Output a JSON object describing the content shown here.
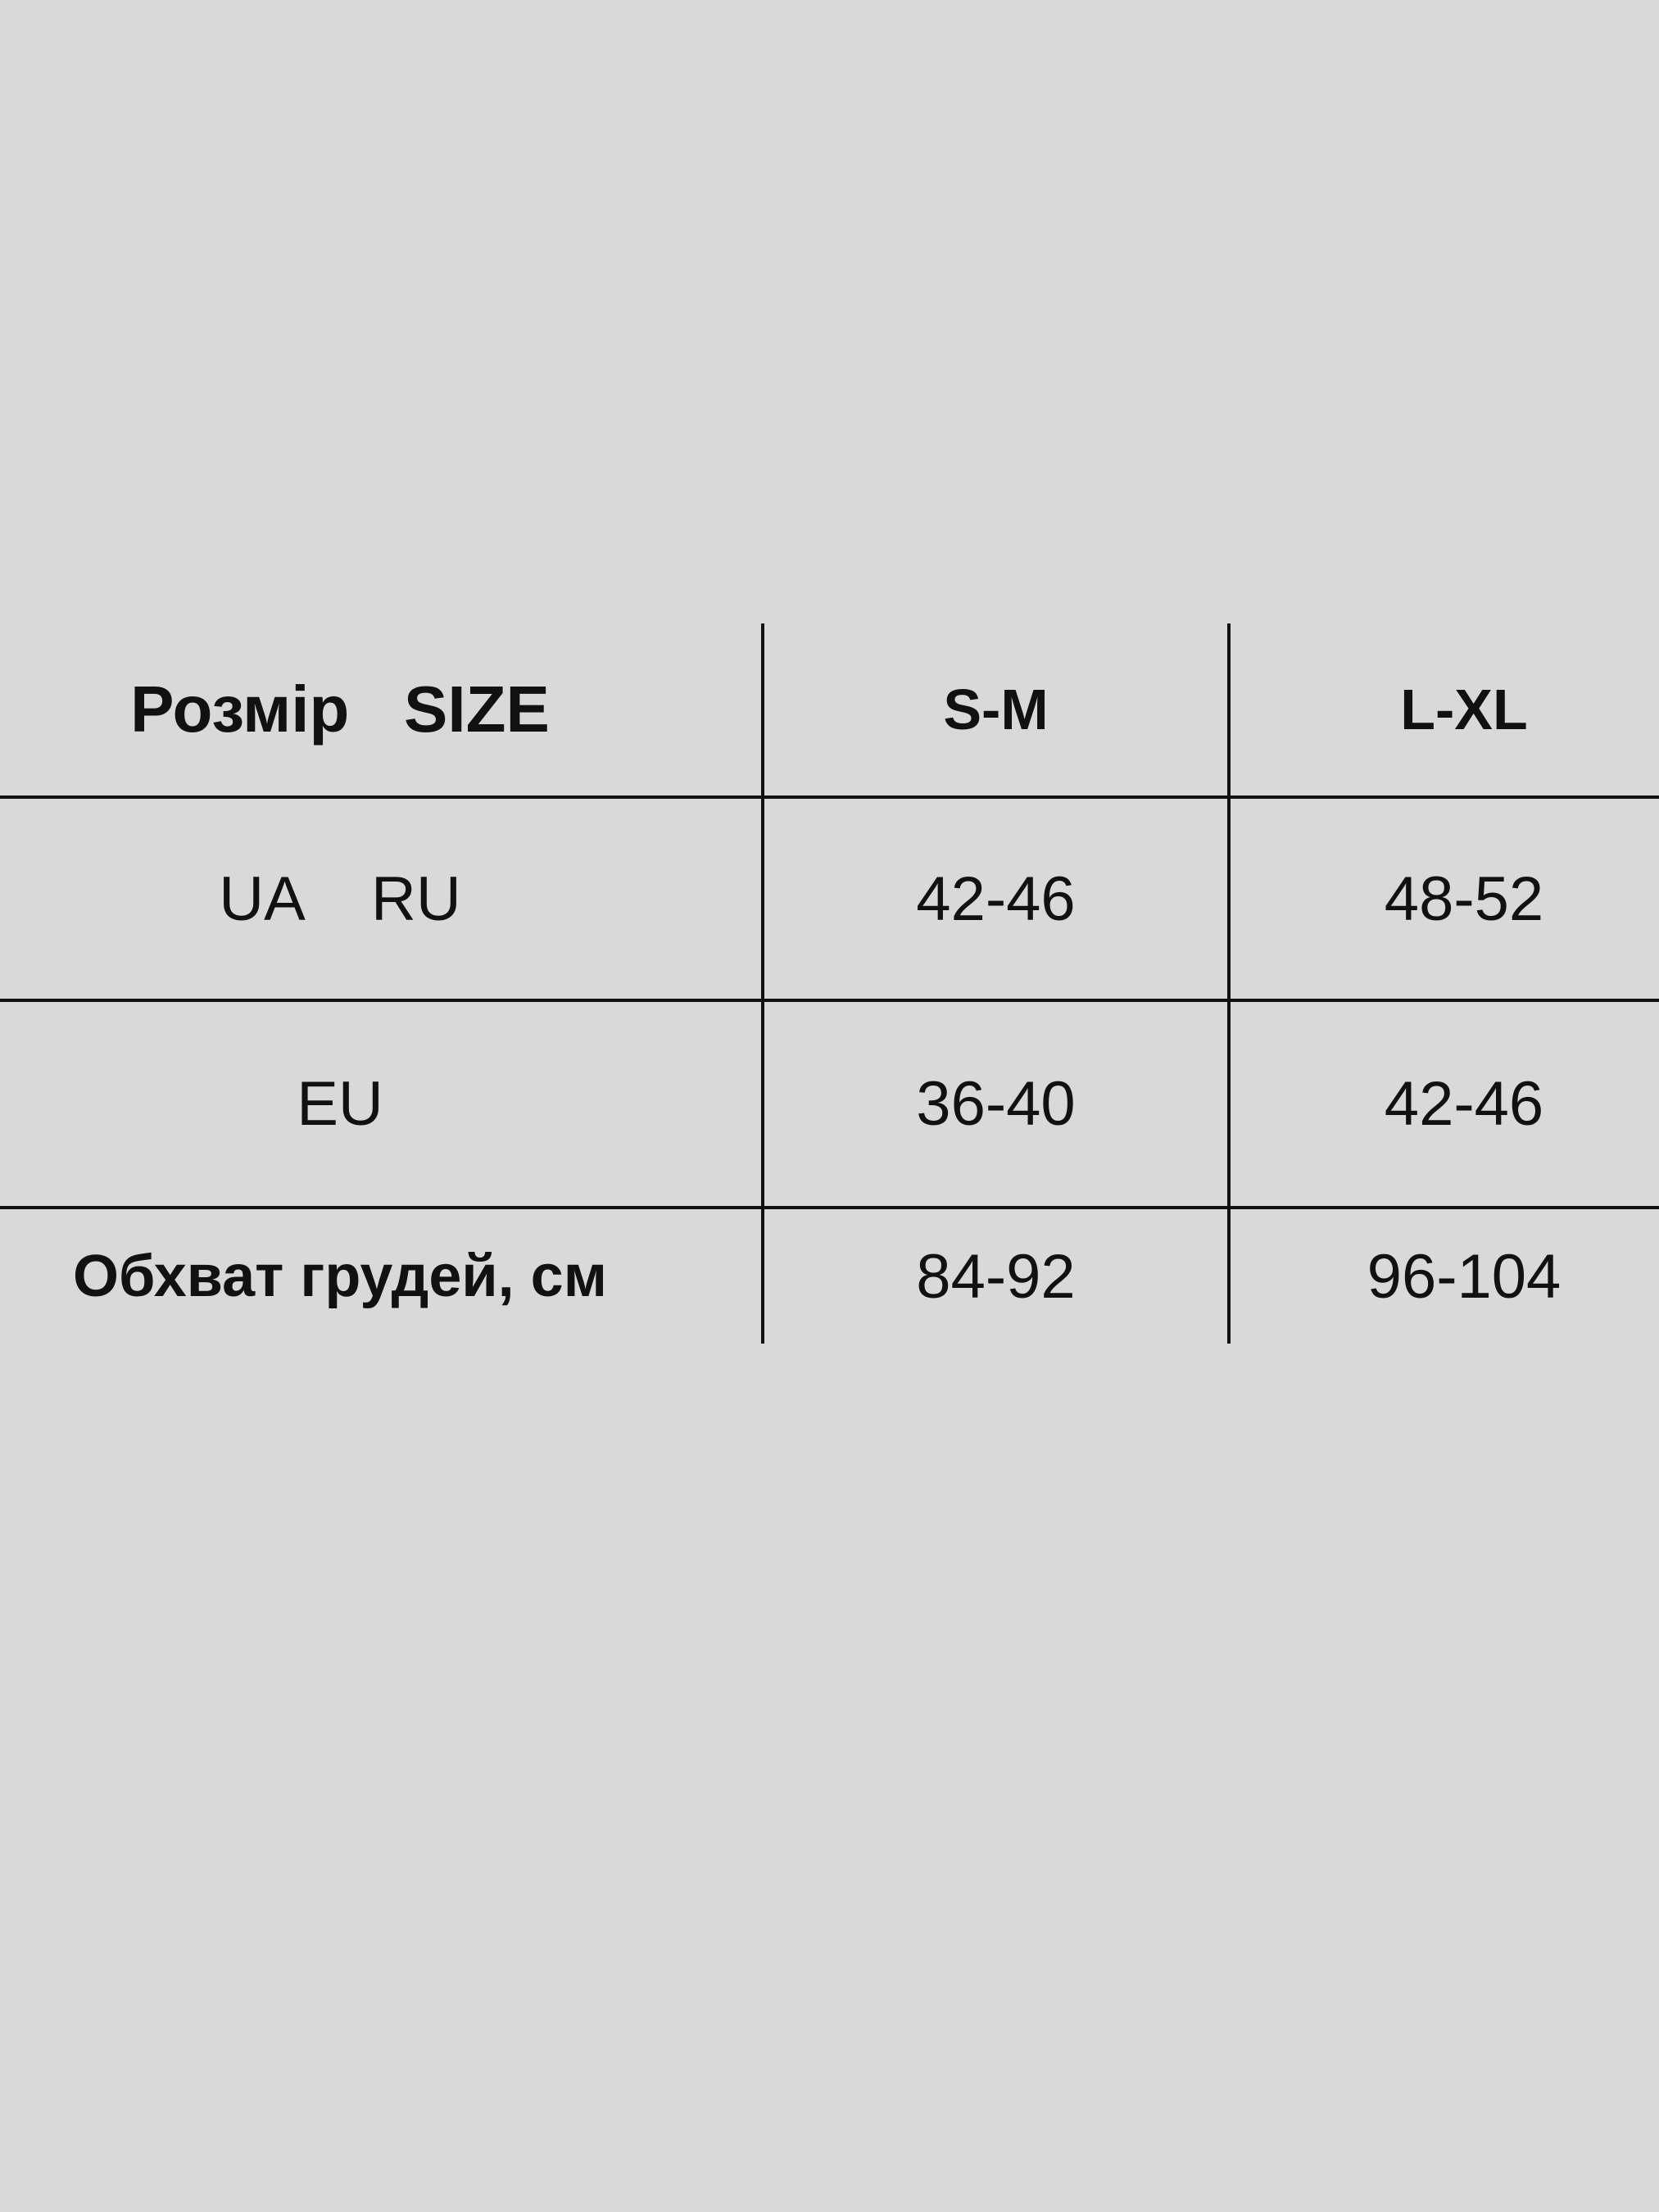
{
  "table": {
    "header": [
      "Розмір   SIZE",
      "S-M",
      "L-XL"
    ],
    "rows": [
      [
        "UA    RU",
        "42-46",
        "48-52"
      ],
      [
        "EU",
        "36-40",
        "42-46"
      ],
      [
        "Обхват грудей, см",
        "84-92",
        "96-104"
      ]
    ]
  }
}
